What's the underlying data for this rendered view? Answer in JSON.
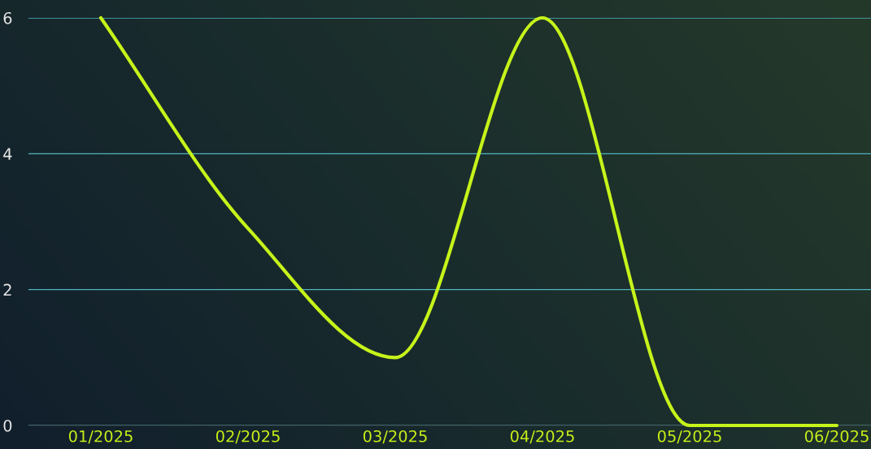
{
  "chart_data": {
    "type": "line",
    "categories": [
      "01/2025",
      "02/2025",
      "03/2025",
      "04/2025",
      "05/2025",
      "06/2025"
    ],
    "series": [
      {
        "color": "#c6f31a",
        "values": [
          6,
          2.9,
          1,
          6,
          0,
          0
        ]
      }
    ],
    "ylim": [
      0,
      6
    ],
    "yticks": [
      0,
      2,
      4,
      6
    ],
    "grid": "y",
    "marker": "none",
    "line_style": "solid"
  }
}
